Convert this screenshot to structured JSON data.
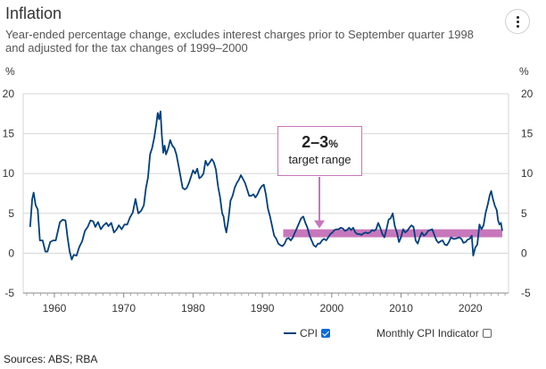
{
  "header": {
    "title": "Inflation",
    "subtitle": "Year-ended percentage change, excludes interest charges prior to September quarter 1998 and adjusted for the tax changes of 1999–2000"
  },
  "legend": {
    "cpi_label": "CPI",
    "cpi_checked": true,
    "monthly_label": "Monthly CPI Indicator",
    "monthly_checked": false
  },
  "annotation": {
    "big": "2–3",
    "pct": "%",
    "sub": "target range"
  },
  "sources": "Sources: ABS; RBA",
  "colors": {
    "cpi": "#003f7d",
    "target_band": "#c777bb",
    "grid": "#d6d6d6"
  },
  "chart_data": {
    "type": "line",
    "yunit_left": "%",
    "yunit_right": "%",
    "xlim": [
      1955.5,
      2025.5
    ],
    "ylim": [
      -5,
      20
    ],
    "xticks": [
      1960,
      1970,
      1980,
      1990,
      2000,
      2010,
      2020
    ],
    "yticks": [
      -5,
      0,
      5,
      10,
      15,
      20
    ],
    "grid": true,
    "target_band": {
      "from_x": 1993,
      "to_x": 2024.6,
      "low": 2,
      "high": 3
    },
    "series": [
      {
        "name": "CPI",
        "points": [
          [
            1956.5,
            3.3
          ],
          [
            1956.8,
            6.8
          ],
          [
            1957.0,
            7.6
          ],
          [
            1957.3,
            6.0
          ],
          [
            1957.6,
            5.5
          ],
          [
            1957.9,
            1.6
          ],
          [
            1958.3,
            1.6
          ],
          [
            1958.7,
            0.2
          ],
          [
            1959.0,
            0.2
          ],
          [
            1959.4,
            1.4
          ],
          [
            1959.8,
            1.6
          ],
          [
            1960.2,
            1.6
          ],
          [
            1960.5,
            2.8
          ],
          [
            1960.8,
            3.9
          ],
          [
            1961.2,
            4.2
          ],
          [
            1961.6,
            4.1
          ],
          [
            1961.9,
            2.0
          ],
          [
            1962.2,
            0.2
          ],
          [
            1962.5,
            -0.8
          ],
          [
            1962.8,
            -0.2
          ],
          [
            1963.2,
            -0.3
          ],
          [
            1963.6,
            0.8
          ],
          [
            1964.0,
            1.5
          ],
          [
            1964.4,
            2.8
          ],
          [
            1964.8,
            3.3
          ],
          [
            1965.2,
            4.1
          ],
          [
            1965.6,
            4.0
          ],
          [
            1965.9,
            3.3
          ],
          [
            1966.3,
            3.9
          ],
          [
            1966.7,
            3.0
          ],
          [
            1967.1,
            3.5
          ],
          [
            1967.5,
            3.8
          ],
          [
            1967.8,
            3.4
          ],
          [
            1968.2,
            3.8
          ],
          [
            1968.6,
            2.6
          ],
          [
            1969.0,
            3.0
          ],
          [
            1969.3,
            3.5
          ],
          [
            1969.7,
            3.0
          ],
          [
            1970.1,
            3.6
          ],
          [
            1970.5,
            3.6
          ],
          [
            1970.9,
            4.5
          ],
          [
            1971.3,
            5.1
          ],
          [
            1971.7,
            6.8
          ],
          [
            1972.1,
            5.0
          ],
          [
            1972.5,
            5.3
          ],
          [
            1972.9,
            6.0
          ],
          [
            1973.2,
            8.2
          ],
          [
            1973.5,
            9.5
          ],
          [
            1973.8,
            12.4
          ],
          [
            1974.1,
            13.2
          ],
          [
            1974.4,
            14.5
          ],
          [
            1974.7,
            16.2
          ],
          [
            1974.9,
            17.6
          ],
          [
            1975.1,
            16.8
          ],
          [
            1975.3,
            17.8
          ],
          [
            1975.5,
            14.8
          ],
          [
            1975.7,
            12.6
          ],
          [
            1975.9,
            13.5
          ],
          [
            1976.1,
            12.4
          ],
          [
            1976.4,
            13.1
          ],
          [
            1976.7,
            14.2
          ],
          [
            1977.0,
            13.5
          ],
          [
            1977.3,
            13.2
          ],
          [
            1977.6,
            12.4
          ],
          [
            1977.9,
            11.0
          ],
          [
            1978.2,
            9.6
          ],
          [
            1978.5,
            8.2
          ],
          [
            1978.8,
            8.0
          ],
          [
            1979.1,
            8.2
          ],
          [
            1979.4,
            8.8
          ],
          [
            1979.7,
            9.6
          ],
          [
            1980.0,
            10.4
          ],
          [
            1980.3,
            10.0
          ],
          [
            1980.6,
            10.6
          ],
          [
            1980.9,
            9.4
          ],
          [
            1981.2,
            9.6
          ],
          [
            1981.5,
            10.0
          ],
          [
            1981.8,
            11.6
          ],
          [
            1982.1,
            11.0
          ],
          [
            1982.4,
            11.4
          ],
          [
            1982.7,
            11.8
          ],
          [
            1983.0,
            11.4
          ],
          [
            1983.3,
            10.5
          ],
          [
            1983.6,
            8.4
          ],
          [
            1983.9,
            7.0
          ],
          [
            1984.2,
            5.0
          ],
          [
            1984.4,
            4.6
          ],
          [
            1984.6,
            3.4
          ],
          [
            1984.8,
            2.6
          ],
          [
            1985.1,
            4.2
          ],
          [
            1985.4,
            6.6
          ],
          [
            1985.7,
            7.2
          ],
          [
            1986.0,
            8.2
          ],
          [
            1986.3,
            8.8
          ],
          [
            1986.6,
            9.2
          ],
          [
            1986.9,
            9.8
          ],
          [
            1987.2,
            9.3
          ],
          [
            1987.5,
            8.8
          ],
          [
            1987.8,
            8.0
          ],
          [
            1988.1,
            7.2
          ],
          [
            1988.4,
            7.2
          ],
          [
            1988.7,
            7.4
          ],
          [
            1989.0,
            7.0
          ],
          [
            1989.3,
            7.4
          ],
          [
            1989.6,
            8.0
          ],
          [
            1989.9,
            8.4
          ],
          [
            1990.2,
            8.6
          ],
          [
            1990.5,
            7.4
          ],
          [
            1990.8,
            5.6
          ],
          [
            1991.1,
            4.6
          ],
          [
            1991.4,
            3.4
          ],
          [
            1991.7,
            2.2
          ],
          [
            1992.0,
            1.8
          ],
          [
            1992.3,
            1.2
          ],
          [
            1992.6,
            1.0
          ],
          [
            1992.9,
            0.9
          ],
          [
            1993.2,
            1.2
          ],
          [
            1993.5,
            1.8
          ],
          [
            1993.8,
            1.9
          ],
          [
            1994.1,
            1.6
          ],
          [
            1994.4,
            2.0
          ],
          [
            1994.7,
            2.6
          ],
          [
            1995.0,
            3.2
          ],
          [
            1995.3,
            3.8
          ],
          [
            1995.6,
            4.4
          ],
          [
            1995.9,
            4.6
          ],
          [
            1996.2,
            3.8
          ],
          [
            1996.5,
            3.2
          ],
          [
            1996.8,
            2.2
          ],
          [
            1997.1,
            1.6
          ],
          [
            1997.4,
            1.0
          ],
          [
            1997.7,
            0.8
          ],
          [
            1998.0,
            1.2
          ],
          [
            1998.3,
            1.2
          ],
          [
            1998.6,
            1.6
          ],
          [
            1998.9,
            1.8
          ],
          [
            1999.2,
            1.6
          ],
          [
            1999.5,
            2.0
          ],
          [
            1999.8,
            2.4
          ],
          [
            2000.1,
            2.6
          ],
          [
            2000.4,
            2.9
          ],
          [
            2000.7,
            3.0
          ],
          [
            2001.0,
            3.0
          ],
          [
            2001.3,
            3.2
          ],
          [
            2001.6,
            3.1
          ],
          [
            2001.9,
            2.8
          ],
          [
            2002.2,
            2.9
          ],
          [
            2002.5,
            3.2
          ],
          [
            2002.8,
            2.9
          ],
          [
            2003.1,
            3.2
          ],
          [
            2003.4,
            2.6
          ],
          [
            2003.7,
            2.4
          ],
          [
            2004.0,
            2.4
          ],
          [
            2004.3,
            2.3
          ],
          [
            2004.6,
            2.5
          ],
          [
            2004.9,
            2.6
          ],
          [
            2005.2,
            2.5
          ],
          [
            2005.5,
            2.6
          ],
          [
            2005.8,
            2.9
          ],
          [
            2006.1,
            2.8
          ],
          [
            2006.4,
            3.0
          ],
          [
            2006.7,
            3.8
          ],
          [
            2007.0,
            3.2
          ],
          [
            2007.3,
            2.4
          ],
          [
            2007.6,
            2.0
          ],
          [
            2007.9,
            3.0
          ],
          [
            2008.2,
            4.2
          ],
          [
            2008.5,
            4.4
          ],
          [
            2008.8,
            5.0
          ],
          [
            2009.1,
            3.4
          ],
          [
            2009.4,
            2.6
          ],
          [
            2009.7,
            1.4
          ],
          [
            2010.0,
            2.0
          ],
          [
            2010.3,
            3.0
          ],
          [
            2010.6,
            2.6
          ],
          [
            2010.9,
            2.8
          ],
          [
            2011.2,
            3.2
          ],
          [
            2011.5,
            3.5
          ],
          [
            2011.8,
            3.3
          ],
          [
            2012.1,
            1.6
          ],
          [
            2012.4,
            1.2
          ],
          [
            2012.7,
            2.0
          ],
          [
            2013.0,
            2.6
          ],
          [
            2013.3,
            2.2
          ],
          [
            2013.6,
            2.4
          ],
          [
            2013.9,
            2.8
          ],
          [
            2014.2,
            2.9
          ],
          [
            2014.5,
            3.0
          ],
          [
            2014.8,
            2.3
          ],
          [
            2015.1,
            1.6
          ],
          [
            2015.4,
            1.3
          ],
          [
            2015.7,
            1.5
          ],
          [
            2016.0,
            1.6
          ],
          [
            2016.3,
            1.1
          ],
          [
            2016.6,
            1.0
          ],
          [
            2016.9,
            1.4
          ],
          [
            2017.2,
            2.0
          ],
          [
            2017.5,
            1.8
          ],
          [
            2017.8,
            1.8
          ],
          [
            2018.1,
            1.9
          ],
          [
            2018.4,
            2.0
          ],
          [
            2018.7,
            1.8
          ],
          [
            2019.0,
            1.3
          ],
          [
            2019.3,
            1.4
          ],
          [
            2019.6,
            1.7
          ],
          [
            2019.9,
            1.8
          ],
          [
            2020.2,
            2.2
          ],
          [
            2020.4,
            -0.3
          ],
          [
            2020.7,
            0.7
          ],
          [
            2021.0,
            1.1
          ],
          [
            2021.3,
            3.6
          ],
          [
            2021.6,
            3.0
          ],
          [
            2021.9,
            3.5
          ],
          [
            2022.2,
            5.1
          ],
          [
            2022.5,
            6.1
          ],
          [
            2022.8,
            7.3
          ],
          [
            2023.0,
            7.8
          ],
          [
            2023.2,
            7.0
          ],
          [
            2023.5,
            6.0
          ],
          [
            2023.8,
            5.4
          ],
          [
            2024.0,
            4.1
          ],
          [
            2024.2,
            3.6
          ],
          [
            2024.4,
            3.8
          ],
          [
            2024.6,
            2.8
          ]
        ]
      }
    ]
  }
}
